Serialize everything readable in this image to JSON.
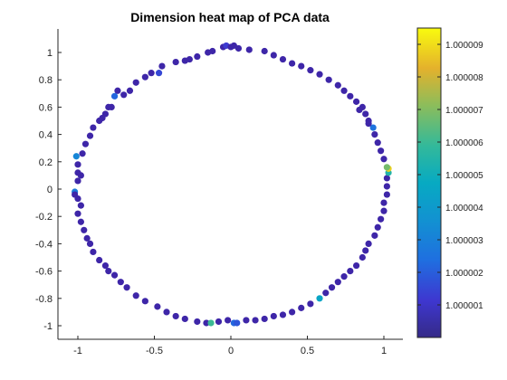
{
  "chart_data": {
    "type": "scatter",
    "title": "Dimension heat map of PCA data",
    "xlabel": "",
    "ylabel": "",
    "xlim": [
      -1.1,
      1.1
    ],
    "ylim": [
      -1.1,
      1.15
    ],
    "xticks": [
      -1,
      -0.5,
      0,
      0.5,
      1
    ],
    "xtick_labels": [
      "-1",
      "-0.5",
      "0",
      "0.5",
      "1"
    ],
    "yticks": [
      1,
      0.8,
      0.6,
      0.4,
      0.2,
      0,
      -0.2,
      -0.4,
      -0.6,
      -0.8,
      -1
    ],
    "ytick_labels": [
      "1",
      "0.8",
      "0.6",
      "0.4",
      "0.2",
      "0",
      "-0.2",
      "-0.4",
      "-0.6",
      "-0.8",
      "-1"
    ],
    "grid": false,
    "colormap": "parula",
    "color_range": [
      1.0,
      1.0000095
    ],
    "colorbar_ticks": [
      1.000001,
      1.000002,
      1.000003,
      1.000004,
      1.000005,
      1.000006,
      1.000007,
      1.000008,
      1.000009
    ],
    "colorbar_tick_labels": [
      "1.000001",
      "1.000002",
      "1.000003",
      "1.000004",
      "1.000005",
      "1.000006",
      "1.000007",
      "1.000008",
      "1.000009"
    ],
    "marker_color_default": "#3e26a8",
    "points": [
      [
        -0.05,
        1.04,
        1.0
      ],
      [
        -0.03,
        1.05,
        1.0000012
      ],
      [
        0.0,
        1.04,
        1.0
      ],
      [
        0.02,
        1.05,
        1.0
      ],
      [
        0.05,
        1.03,
        1.0
      ],
      [
        -0.12,
        1.01,
        1.0
      ],
      [
        -0.22,
        0.97,
        1.0
      ],
      [
        -0.27,
        0.95,
        1.0
      ],
      [
        -0.36,
        0.93,
        1.0
      ],
      [
        -0.45,
        0.9,
        1.0
      ],
      [
        -0.47,
        0.85,
        1.0000015
      ],
      [
        -0.52,
        0.85,
        1.0
      ],
      [
        -0.62,
        0.78,
        1.0
      ],
      [
        -0.66,
        0.72,
        1.0
      ],
      [
        -0.7,
        0.69,
        1.0
      ],
      [
        -0.74,
        0.72,
        1.0
      ],
      [
        -0.76,
        0.68,
        1.0000022
      ],
      [
        -0.8,
        0.6,
        1.0
      ],
      [
        -0.78,
        0.6,
        1.0
      ],
      [
        -0.82,
        0.55,
        1.0
      ],
      [
        -0.86,
        0.5,
        1.0
      ],
      [
        -0.9,
        0.45,
        1.0
      ],
      [
        -0.92,
        0.39,
        1.0
      ],
      [
        -0.95,
        0.33,
        1.0
      ],
      [
        -0.97,
        0.26,
        1.0
      ],
      [
        -1.01,
        0.24,
        1.0000032
      ],
      [
        -1.0,
        0.18,
        1.0
      ],
      [
        -1.0,
        0.12,
        1.0
      ],
      [
        -0.98,
        0.1,
        1.0
      ],
      [
        -1.0,
        0.06,
        1.0
      ],
      [
        -1.02,
        -0.02,
        1.0000028
      ],
      [
        -1.02,
        -0.04,
        1.0
      ],
      [
        -1.0,
        -0.07,
        1.0
      ],
      [
        -0.98,
        -0.12,
        1.0
      ],
      [
        -1.0,
        -0.18,
        1.0
      ],
      [
        -0.98,
        -0.24,
        1.0
      ],
      [
        -0.96,
        -0.3,
        1.0
      ],
      [
        -0.94,
        -0.36,
        1.0
      ],
      [
        -0.92,
        -0.4,
        1.0
      ],
      [
        -0.9,
        -0.46,
        1.0
      ],
      [
        -0.86,
        -0.52,
        1.0
      ],
      [
        -0.82,
        -0.56,
        1.0
      ],
      [
        -0.8,
        -0.6,
        1.0
      ],
      [
        -0.76,
        -0.63,
        1.0
      ],
      [
        -0.72,
        -0.68,
        1.0
      ],
      [
        -0.68,
        -0.72,
        1.0
      ],
      [
        -0.62,
        -0.78,
        1.0
      ],
      [
        -0.56,
        -0.82,
        1.0
      ],
      [
        -0.48,
        -0.86,
        1.0
      ],
      [
        -0.42,
        -0.9,
        1.0
      ],
      [
        -0.36,
        -0.93,
        1.0
      ],
      [
        -0.3,
        -0.95,
        1.0
      ],
      [
        -0.22,
        -0.97,
        1.0
      ],
      [
        -0.16,
        -0.98,
        1.0
      ],
      [
        -0.13,
        -0.98,
        1.000006
      ],
      [
        -0.08,
        -0.97,
        1.0
      ],
      [
        -0.02,
        -0.96,
        1.0
      ],
      [
        0.02,
        -0.98,
        1.0000022
      ],
      [
        0.04,
        -0.98,
        1.0000018
      ],
      [
        0.1,
        -0.96,
        1.0
      ],
      [
        0.16,
        -0.96,
        1.0
      ],
      [
        0.22,
        -0.95,
        1.0
      ],
      [
        0.28,
        -0.93,
        1.0
      ],
      [
        0.34,
        -0.92,
        1.0
      ],
      [
        0.4,
        -0.9,
        1.0
      ],
      [
        0.46,
        -0.87,
        1.0
      ],
      [
        0.52,
        -0.84,
        1.0
      ],
      [
        0.58,
        -0.8,
        1.0000045
      ],
      [
        0.62,
        -0.76,
        1.0
      ],
      [
        0.66,
        -0.72,
        1.0
      ],
      [
        0.7,
        -0.68,
        1.0
      ],
      [
        0.74,
        -0.64,
        1.0
      ],
      [
        0.78,
        -0.6,
        1.0
      ],
      [
        0.82,
        -0.56,
        1.0
      ],
      [
        0.86,
        -0.5,
        1.0
      ],
      [
        0.88,
        -0.45,
        1.0
      ],
      [
        0.9,
        -0.4,
        1.0
      ],
      [
        0.94,
        -0.34,
        1.0
      ],
      [
        0.96,
        -0.28,
        1.0
      ],
      [
        0.98,
        -0.22,
        1.0
      ],
      [
        1.0,
        -0.16,
        1.0
      ],
      [
        1.0,
        -0.1,
        1.0
      ],
      [
        1.02,
        -0.04,
        1.0
      ],
      [
        1.02,
        0.02,
        1.0
      ],
      [
        1.02,
        0.08,
        1.0
      ],
      [
        1.03,
        0.12,
        1.0000055
      ],
      [
        1.03,
        0.15,
        1.0000088
      ],
      [
        1.02,
        0.16,
        1.0000068
      ],
      [
        1.0,
        0.22,
        1.0
      ],
      [
        0.98,
        0.28,
        1.0
      ],
      [
        0.96,
        0.34,
        1.0
      ],
      [
        0.94,
        0.4,
        1.0
      ],
      [
        0.93,
        0.45,
        1.0000025
      ],
      [
        0.9,
        0.5,
        1.0
      ],
      [
        0.88,
        0.55,
        1.0
      ],
      [
        0.86,
        0.6,
        1.0
      ],
      [
        0.82,
        0.64,
        1.0
      ],
      [
        0.78,
        0.68,
        1.0
      ],
      [
        0.74,
        0.72,
        1.0
      ],
      [
        0.7,
        0.76,
        1.0
      ],
      [
        0.64,
        0.8,
        1.0
      ],
      [
        0.58,
        0.84,
        1.0
      ],
      [
        0.52,
        0.87,
        1.0
      ],
      [
        0.46,
        0.9,
        1.0
      ],
      [
        0.4,
        0.92,
        1.0
      ],
      [
        0.34,
        0.95,
        1.0
      ],
      [
        0.28,
        0.98,
        1.0
      ],
      [
        0.22,
        1.01,
        1.0
      ],
      [
        0.12,
        1.02,
        1.0
      ],
      [
        -0.15,
        1.0,
        1.0
      ],
      [
        -0.3,
        0.94,
        1.0
      ],
      [
        -0.56,
        0.82,
        1.0
      ],
      [
        -0.84,
        0.52,
        1.0
      ],
      [
        0.84,
        0.58,
        1.0
      ],
      [
        0.9,
        0.48,
        1.0
      ]
    ]
  }
}
